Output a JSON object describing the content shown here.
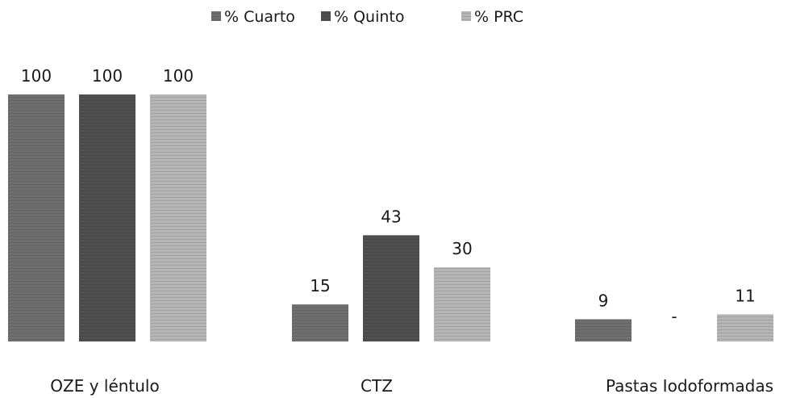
{
  "chart_data": {
    "type": "bar",
    "categories": [
      "OZE y léntulo",
      "CTZ",
      "Pastas Iodoformadas"
    ],
    "series": [
      {
        "name": "% Cuarto",
        "values": [
          100,
          15,
          9
        ],
        "labels": [
          "100",
          "15",
          "9"
        ],
        "color": "#6f6f6f"
      },
      {
        "name": "% Quinto",
        "values": [
          100,
          43,
          0
        ],
        "labels": [
          "100",
          "43",
          "-"
        ],
        "color": "#4f4f4f"
      },
      {
        "name": "% PRC",
        "values": [
          100,
          30,
          11
        ],
        "labels": [
          "100",
          "30",
          "11"
        ],
        "color": "#b5b5b5"
      }
    ],
    "ylim": [
      0,
      100
    ],
    "grid": false,
    "legend_position": "top-center"
  }
}
